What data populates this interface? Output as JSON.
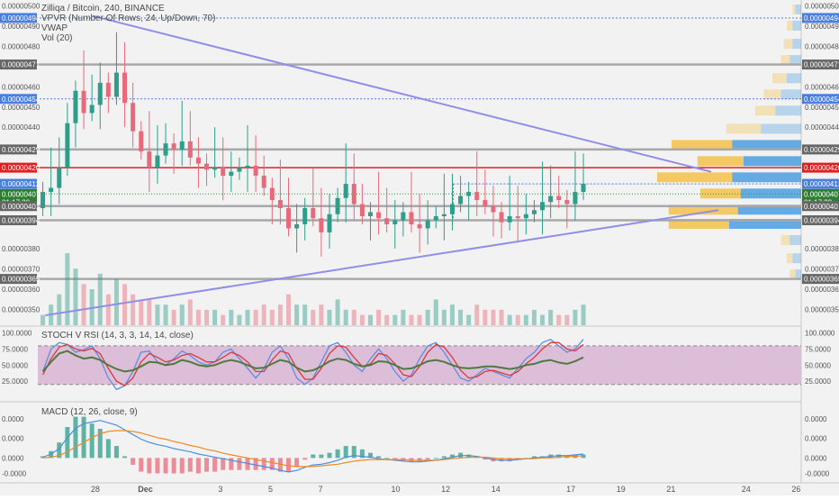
{
  "header": {
    "title": "Zilliqa / Bitcoin, 240, BINANCE",
    "vpvr": "VPVR (Number Of Rows, 24, Up/Down, 70)",
    "vwap": "VWAP",
    "vol": "Vol (20)"
  },
  "stoch_panel": {
    "title": "STOCH V RSI (14, 3, 3, 14, 14, close)"
  },
  "macd_panel": {
    "title": "MACD (12, 26, close, 9)"
  },
  "colors": {
    "up": "#2e9e8a",
    "down": "#e8697a",
    "level_line": "#a8a8a8",
    "red_line": "#e02020",
    "trend_line": "#8f8fe6",
    "stoch_k": "#5b8fe0",
    "stoch_d": "#d93a3a",
    "rsi": "#4f7a3d",
    "macd": "#4a8fe0",
    "signal": "#f08a24",
    "band": "#d9b8d6",
    "vpvr_up": "#4b9fe0",
    "vpvr_down": "#f4c24a",
    "background": "#f2f2f2"
  },
  "chart_data": [
    {
      "type": "candlestick",
      "title": "Zilliqa / Bitcoin, 240, BINANCE",
      "ylim": [
        3.43e-06,
        5.02e-06
      ],
      "y_ticks": [
        "0.00000500",
        "0.00000490",
        "0.00000480",
        "0.00000460",
        "0.00000450",
        "0.00000440",
        "0.00000380",
        "0.00000370",
        "0.00000360",
        "0.00000350"
      ],
      "x_ticks": [
        "28",
        "Dec",
        "3",
        "5",
        "7",
        "10",
        "12",
        "14",
        "17",
        "19",
        "21",
        "24",
        "26"
      ],
      "x_tick_day": [
        28,
        30,
        33,
        35,
        37,
        40,
        42,
        44,
        47,
        49,
        51,
        54,
        56
      ],
      "price_badges": [
        {
          "label": "0.00000494",
          "value": 4.94e-06,
          "kind": "blue"
        },
        {
          "label": "0.00000471",
          "value": 4.71e-06,
          "kind": "gray"
        },
        {
          "label": "0.00000454",
          "value": 4.54e-06,
          "kind": "blue"
        },
        {
          "label": "0.00000429",
          "value": 4.29e-06,
          "kind": "gray"
        },
        {
          "label": "0.00000420",
          "value": 4.2e-06,
          "kind": "red"
        },
        {
          "label": "0.00000412",
          "value": 4.12e-06,
          "kind": "blue"
        },
        {
          "label": "0.00000407",
          "value": 4.07e-06,
          "kind": "green"
        },
        {
          "label": "01:17:29",
          "value": 4.03e-06,
          "kind": "green"
        },
        {
          "label": "0.00000401",
          "value": 4.01e-06,
          "kind": "gray"
        },
        {
          "label": "0.00000394",
          "value": 3.94e-06,
          "kind": "gray"
        },
        {
          "label": "0.00000365",
          "value": 3.65e-06,
          "kind": "gray"
        }
      ],
      "horizontal_levels": [
        4.71e-06,
        4.29e-06,
        4.01e-06,
        3.94e-06,
        3.65e-06
      ],
      "red_level": 4.2e-06,
      "dotted_levels": [
        4.94e-06,
        4.54e-06
      ],
      "trend_lines": [
        {
          "x1": 27.9,
          "y1": 4.95e-06,
          "x2": 52.6,
          "y2": 4.18e-06
        },
        {
          "x1": 26.0,
          "y1": 3.47e-06,
          "x2": 52.9,
          "y2": 3.99e-06
        }
      ],
      "range_box": {
        "x1": 42.3,
        "x2": 47.5,
        "top": 4.12e-06,
        "bottom": 3.95e-06
      },
      "closes": [
        4.08e-06,
        4.1e-06,
        4.2e-06,
        4.42e-06,
        4.58e-06,
        4.47e-06,
        4.51e-06,
        4.62e-06,
        4.55e-06,
        4.67e-06,
        4.52e-06,
        4.38e-06,
        4.28e-06,
        4.2e-06,
        4.26e-06,
        4.32e-06,
        4.29e-06,
        4.33e-06,
        4.25e-06,
        4.22e-06,
        4.19e-06,
        4.2e-06,
        4.16e-06,
        4.18e-06,
        4.2e-06,
        4.21e-06,
        4.16e-06,
        4.1e-06,
        4.04e-06,
        4e-06,
        3.9e-06,
        3.92e-06,
        4e-06,
        3.95e-06,
        3.88e-06,
        3.97e-06,
        4.05e-06,
        4.12e-06,
        4.02e-06,
        3.96e-06,
        3.98e-06,
        3.95e-06,
        3.92e-06,
        3.94e-06,
        3.98e-06,
        3.92e-06,
        3.9e-06,
        3.94e-06,
        3.96e-06,
        3.97e-06,
        4.02e-06,
        4.06e-06,
        4.08e-06,
        4.04e-06,
        4.01e-06,
        3.98e-06,
        3.93e-06,
        3.96e-06,
        3.95e-06,
        3.97e-06,
        3.99e-06,
        4.03e-06,
        4.06e-06,
        4.04e-06,
        4.02e-06,
        4.08e-06,
        4.12e-06
      ],
      "volumes": [
        2,
        4,
        6,
        14,
        11,
        8,
        7,
        10,
        6,
        9,
        8,
        6,
        5,
        5,
        4,
        4,
        3,
        4,
        5,
        3,
        3,
        3,
        2,
        3,
        2,
        3,
        3,
        4,
        3,
        4,
        6,
        4,
        4,
        3,
        4,
        3,
        5,
        3,
        3,
        2,
        2,
        3,
        2,
        2,
        3,
        2,
        2,
        3,
        5,
        3,
        4,
        3,
        2,
        4,
        3,
        3,
        3,
        2,
        2,
        2,
        3,
        2,
        3,
        2,
        2,
        3,
        4
      ],
      "vpvr": [
        {
          "price": 4.98e-06,
          "up": 2,
          "down": 1
        },
        {
          "price": 4.9e-06,
          "up": 3,
          "down": 2
        },
        {
          "price": 4.81e-06,
          "up": 3,
          "down": 3
        },
        {
          "price": 4.73e-06,
          "up": 4,
          "down": 3
        },
        {
          "price": 4.64e-06,
          "up": 5,
          "down": 5
        },
        {
          "price": 4.56e-06,
          "up": 7,
          "down": 6
        },
        {
          "price": 4.48e-06,
          "up": 9,
          "down": 7
        },
        {
          "price": 4.39e-06,
          "up": 14,
          "down": 12
        },
        {
          "price": 4.31e-06,
          "up": 24,
          "down": 21
        },
        {
          "price": 4.23e-06,
          "up": 20,
          "down": 16
        },
        {
          "price": 4.15e-06,
          "up": 24,
          "down": 26
        },
        {
          "price": 4.07e-06,
          "up": 21,
          "down": 14
        },
        {
          "price": 3.99e-06,
          "up": 22,
          "down": 24
        },
        {
          "price": 3.92e-06,
          "up": 25,
          "down": 21
        },
        {
          "price": 3.84e-06,
          "up": 4,
          "down": 3
        },
        {
          "price": 3.75e-06,
          "up": 3,
          "down": 2
        },
        {
          "price": 3.67e-06,
          "up": 2,
          "down": 2
        }
      ]
    },
    {
      "type": "line",
      "title": "STOCH V RSI (14, 3, 3, 14, 14, close)",
      "ylim": [
        0,
        105
      ],
      "y_ticks": [
        "100.0000",
        "75.0000",
        "50.0000",
        "25.0000"
      ],
      "band": [
        20,
        80
      ],
      "series": [
        {
          "name": "K",
          "values": [
            40,
            75,
            85,
            82,
            70,
            74,
            80,
            60,
            30,
            12,
            18,
            40,
            70,
            72,
            55,
            50,
            60,
            72,
            65,
            55,
            50,
            55,
            70,
            75,
            60,
            45,
            30,
            45,
            70,
            80,
            60,
            30,
            20,
            30,
            55,
            80,
            85,
            70,
            50,
            40,
            60,
            75,
            60,
            40,
            25,
            35,
            60,
            80,
            85,
            70,
            50,
            30,
            25,
            35,
            45,
            40,
            35,
            30,
            45,
            60,
            70,
            85,
            90,
            80,
            70,
            75,
            90
          ]
        },
        {
          "name": "D",
          "values": [
            35,
            60,
            78,
            82,
            75,
            72,
            76,
            68,
            45,
            25,
            18,
            30,
            55,
            68,
            62,
            55,
            58,
            65,
            68,
            62,
            55,
            55,
            62,
            70,
            65,
            55,
            40,
            40,
            58,
            72,
            68,
            45,
            28,
            28,
            45,
            68,
            80,
            78,
            62,
            48,
            52,
            68,
            65,
            52,
            35,
            32,
            48,
            70,
            82,
            78,
            62,
            42,
            30,
            32,
            40,
            42,
            38,
            34,
            40,
            52,
            62,
            75,
            85,
            85,
            75,
            72,
            82
          ]
        },
        {
          "name": "RSI",
          "values": [
            40,
            55,
            68,
            72,
            65,
            60,
            62,
            58,
            50,
            44,
            40,
            42,
            48,
            55,
            54,
            50,
            52,
            58,
            55,
            50,
            48,
            50,
            55,
            58,
            55,
            50,
            45,
            46,
            52,
            58,
            55,
            46,
            40,
            42,
            48,
            56,
            60,
            58,
            52,
            48,
            50,
            56,
            55,
            50,
            44,
            45,
            50,
            56,
            58,
            55,
            50,
            46,
            45,
            46,
            48,
            48,
            46,
            44,
            46,
            50,
            52,
            56,
            58,
            54,
            52,
            56,
            62
          ]
        }
      ]
    },
    {
      "type": "line",
      "title": "MACD (12, 26, close, 9)",
      "ylim": [
        -2.5e-08,
        6.5e-08
      ],
      "y_ticks": [
        "0.0000",
        "0.0000",
        "0.0000",
        "-0.0000"
      ],
      "series": [
        {
          "name": "MACD",
          "values": [
            0.1,
            0.5,
            1.2,
            2.6,
            3.8,
            4.4,
            4.6,
            4.8,
            4.5,
            4.2,
            3.6,
            3.0,
            2.4,
            2.0,
            1.7,
            1.5,
            1.2,
            1.0,
            0.8,
            0.5,
            0.3,
            0.1,
            -0.1,
            -0.3,
            -0.5,
            -0.7,
            -0.9,
            -1.1,
            -1.3,
            -1.6,
            -1.8,
            -1.6,
            -1.2,
            -0.9,
            -0.8,
            -0.6,
            -0.3,
            0.1,
            0.3,
            0.2,
            0.1,
            -0.1,
            -0.2,
            -0.3,
            -0.4,
            -0.5,
            -0.5,
            -0.4,
            -0.3,
            -0.1,
            0.1,
            0.3,
            0.3,
            0.2,
            0.0,
            -0.2,
            -0.3,
            -0.3,
            -0.2,
            -0.1,
            0.0,
            0.1,
            0.2,
            0.3,
            0.3,
            0.4,
            0.5
          ]
        },
        {
          "name": "Signal",
          "values": [
            0.0,
            0.1,
            0.3,
            0.8,
            1.4,
            2.0,
            2.6,
            3.1,
            3.4,
            3.5,
            3.5,
            3.4,
            3.2,
            2.9,
            2.6,
            2.4,
            2.1,
            1.9,
            1.6,
            1.4,
            1.1,
            0.9,
            0.6,
            0.4,
            0.2,
            0.0,
            -0.2,
            -0.4,
            -0.6,
            -0.8,
            -1.0,
            -1.1,
            -1.1,
            -1.1,
            -1.0,
            -0.9,
            -0.8,
            -0.6,
            -0.4,
            -0.3,
            -0.2,
            -0.2,
            -0.2,
            -0.2,
            -0.2,
            -0.3,
            -0.3,
            -0.3,
            -0.3,
            -0.2,
            -0.1,
            0.0,
            0.1,
            0.1,
            0.1,
            0.0,
            -0.1,
            -0.1,
            -0.1,
            -0.1,
            -0.1,
            0.0,
            0.0,
            0.1,
            0.2,
            0.2,
            0.3
          ]
        }
      ]
    }
  ]
}
